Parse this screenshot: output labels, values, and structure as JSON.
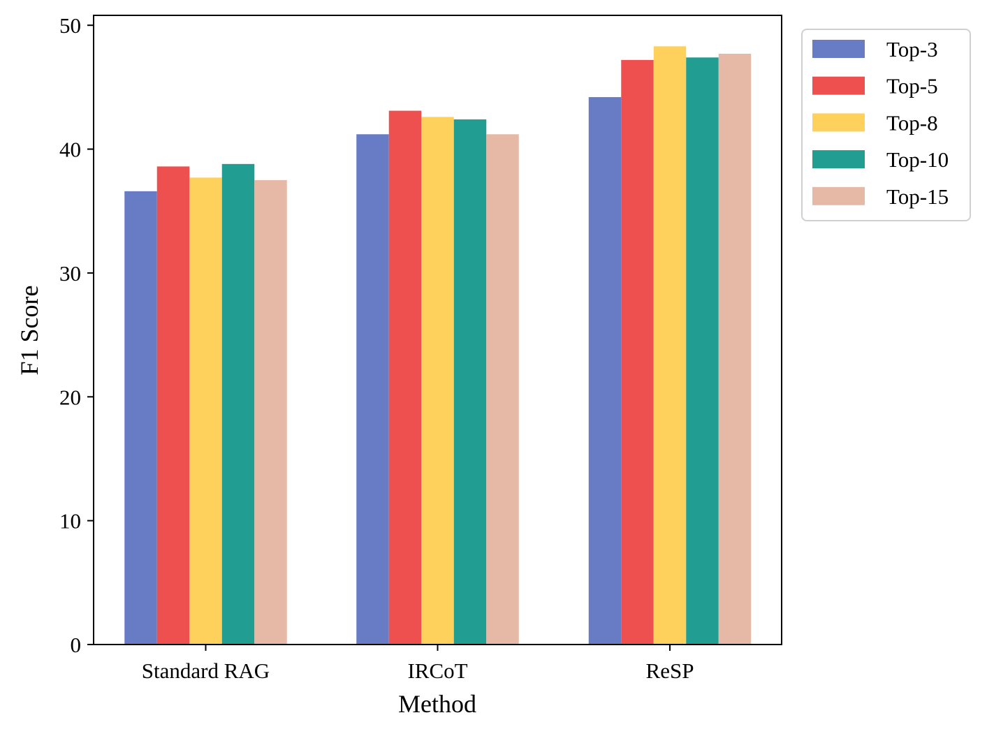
{
  "chart_data": {
    "type": "bar",
    "title": "",
    "xlabel": "Method",
    "ylabel": "F1 Score",
    "categories": [
      "Standard RAG",
      "IRCoT",
      "ReSP"
    ],
    "ylim": [
      0,
      50.8
    ],
    "yticks": [
      0,
      10,
      20,
      30,
      40,
      50
    ],
    "grid": false,
    "legend_position": "outside-top-right",
    "series": [
      {
        "name": "Top-3",
        "color": "#687cc5",
        "values": [
          36.6,
          41.2,
          44.2
        ]
      },
      {
        "name": "Top-5",
        "color": "#ee4f4f",
        "values": [
          38.6,
          43.1,
          47.2
        ]
      },
      {
        "name": "Top-8",
        "color": "#fdd15c",
        "values": [
          37.7,
          42.6,
          48.3
        ]
      },
      {
        "name": "Top-10",
        "color": "#219d91",
        "values": [
          38.8,
          42.4,
          47.4
        ]
      },
      {
        "name": "Top-15",
        "color": "#e5b9a6",
        "values": [
          37.5,
          41.2,
          47.7
        ]
      }
    ]
  }
}
